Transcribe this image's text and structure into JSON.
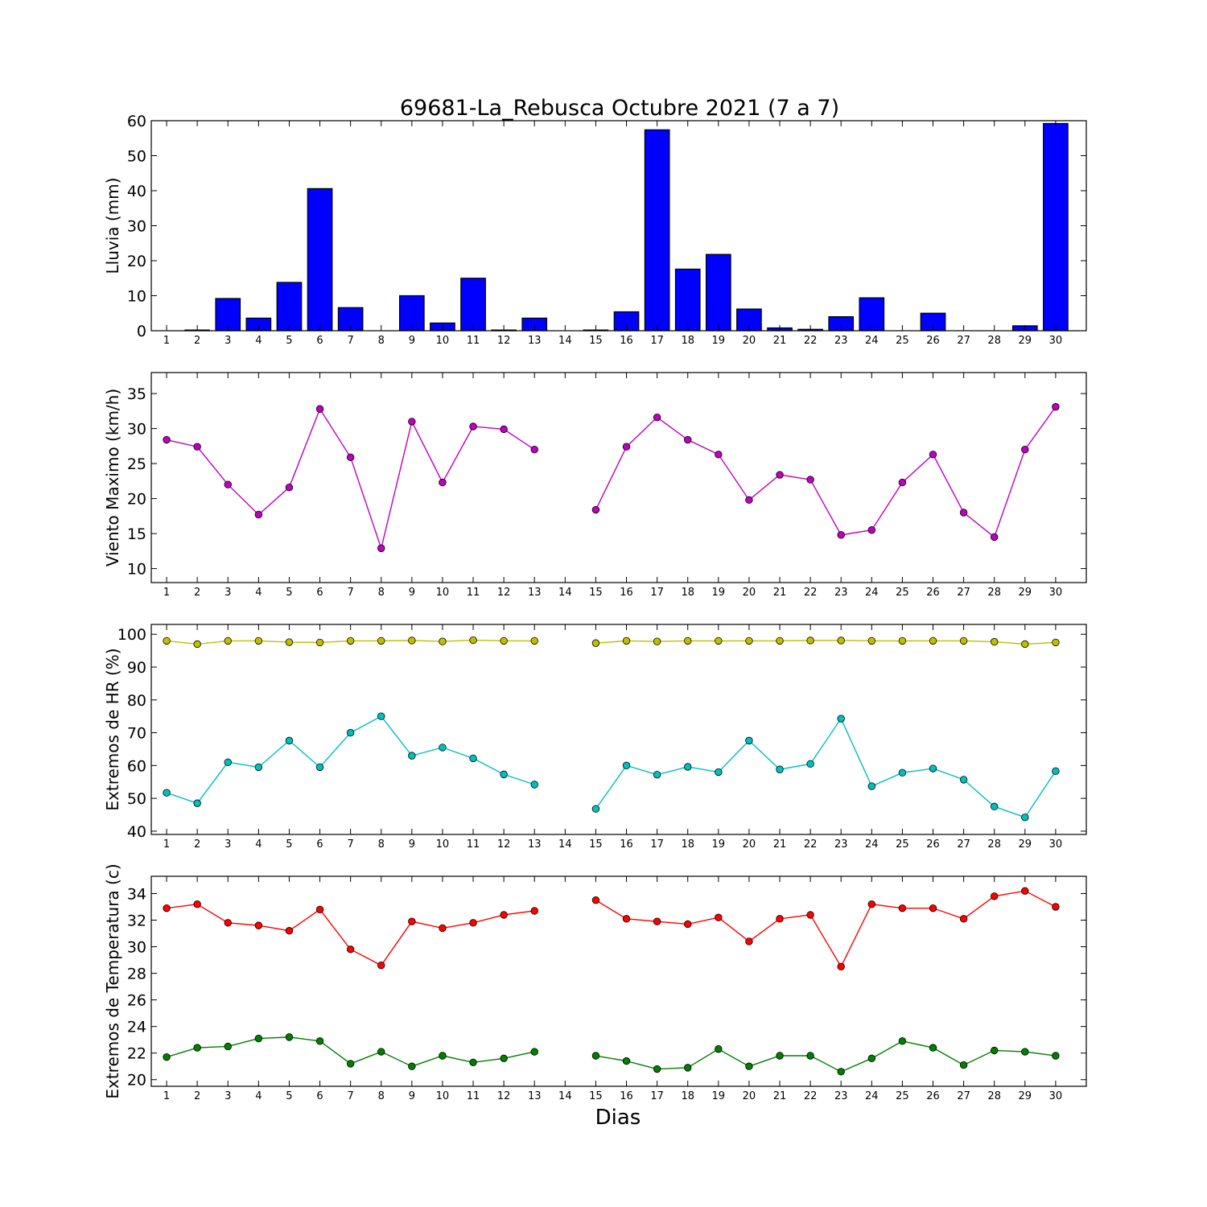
{
  "figure": {
    "title": "69681-La_Rebusca Octubre 2021  (7 a 7)",
    "xlabel": "Dias"
  },
  "chart_data": [
    {
      "type": "bar",
      "ylabel": "Lluvia (mm)",
      "ylim": [
        0,
        60
      ],
      "yticks": [
        0,
        10,
        20,
        30,
        40,
        50,
        60
      ],
      "categories": [
        "1",
        "2",
        "3",
        "4",
        "5",
        "6",
        "7",
        "8",
        "9",
        "10",
        "11",
        "12",
        "13",
        "14",
        "15",
        "16",
        "17",
        "18",
        "19",
        "20",
        "21",
        "22",
        "23",
        "24",
        "25",
        "26",
        "27",
        "28",
        "29",
        "30"
      ],
      "values": [
        0,
        0.2,
        9.2,
        3.6,
        13.8,
        40.6,
        6.6,
        0,
        10.0,
        2.2,
        15.0,
        0.2,
        3.6,
        0,
        0.2,
        5.4,
        57.4,
        17.6,
        21.8,
        6.2,
        0.8,
        0.4,
        4.0,
        9.4,
        0,
        5.0,
        0,
        0,
        1.4,
        59.2
      ],
      "color": "#0000ff",
      "grid": false
    },
    {
      "type": "line",
      "ylabel": "Viento Maximo (km/h)",
      "ylim": [
        8,
        38
      ],
      "yticks": [
        10,
        15,
        20,
        25,
        30,
        35
      ],
      "categories": [
        "1",
        "2",
        "3",
        "4",
        "5",
        "6",
        "7",
        "8",
        "9",
        "10",
        "11",
        "12",
        "13",
        "14",
        "15",
        "16",
        "17",
        "18",
        "19",
        "20",
        "21",
        "22",
        "23",
        "24",
        "25",
        "26",
        "27",
        "28",
        "29",
        "30"
      ],
      "series": [
        {
          "color": "#bf00bf",
          "values": [
            28.4,
            27.4,
            22.0,
            17.7,
            21.6,
            32.8,
            25.9,
            12.9,
            31.0,
            22.3,
            30.3,
            29.9,
            27.0,
            null,
            18.4,
            27.4,
            31.6,
            28.4,
            26.3,
            19.8,
            23.4,
            22.7,
            14.8,
            15.5,
            22.3,
            26.3,
            18.0,
            14.5,
            27.0,
            33.1
          ]
        }
      ],
      "grid": false
    },
    {
      "type": "line",
      "ylabel": "Extremos de HR (%)",
      "ylim": [
        39,
        103
      ],
      "yticks": [
        40,
        50,
        60,
        70,
        80,
        90,
        100
      ],
      "categories": [
        "1",
        "2",
        "3",
        "4",
        "5",
        "6",
        "7",
        "8",
        "9",
        "10",
        "11",
        "12",
        "13",
        "14",
        "15",
        "16",
        "17",
        "18",
        "19",
        "20",
        "21",
        "22",
        "23",
        "24",
        "25",
        "26",
        "27",
        "28",
        "29",
        "30"
      ],
      "series": [
        {
          "color": "#bfbf00",
          "values": [
            98,
            97,
            98,
            98,
            97.6,
            97.5,
            98,
            98,
            98.1,
            97.8,
            98.2,
            98,
            98,
            null,
            97.3,
            98,
            97.8,
            98,
            98,
            98,
            98,
            98.1,
            98.1,
            98,
            98,
            98,
            98,
            97.7,
            97,
            97.5
          ]
        },
        {
          "color": "#00bfbf",
          "values": [
            51.7,
            48.5,
            61,
            59.5,
            67.6,
            59.5,
            70,
            75,
            63,
            65.5,
            62.2,
            57.3,
            54.2,
            null,
            46.8,
            60,
            57.2,
            59.6,
            58,
            67.6,
            58.8,
            60.5,
            74.3,
            53.7,
            57.8,
            59.1,
            55.7,
            47.5,
            44.2,
            58.3
          ]
        }
      ],
      "grid": false
    },
    {
      "type": "line",
      "ylabel": "Extremos de Temperatura (c)",
      "ylim": [
        19.5,
        35.3
      ],
      "yticks": [
        20,
        22,
        24,
        26,
        28,
        30,
        32,
        34
      ],
      "categories": [
        "1",
        "2",
        "3",
        "4",
        "5",
        "6",
        "7",
        "8",
        "9",
        "10",
        "11",
        "12",
        "13",
        "14",
        "15",
        "16",
        "17",
        "18",
        "19",
        "20",
        "21",
        "22",
        "23",
        "24",
        "25",
        "26",
        "27",
        "28",
        "29",
        "30"
      ],
      "series": [
        {
          "color": "#ff0000",
          "values": [
            32.9,
            33.2,
            31.8,
            31.6,
            31.2,
            32.8,
            29.8,
            28.6,
            31.9,
            31.4,
            31.8,
            32.4,
            32.7,
            null,
            33.5,
            32.1,
            31.9,
            31.7,
            32.2,
            30.4,
            32.1,
            32.4,
            28.5,
            33.2,
            32.9,
            32.9,
            32.1,
            33.8,
            34.2,
            33.0
          ]
        },
        {
          "color": "#007f00",
          "values": [
            21.7,
            22.4,
            22.5,
            23.1,
            23.2,
            22.9,
            21.2,
            22.1,
            21.0,
            21.8,
            21.3,
            21.6,
            22.1,
            null,
            21.8,
            21.4,
            20.8,
            20.9,
            22.3,
            21.0,
            21.8,
            21.8,
            20.6,
            21.6,
            22.9,
            22.4,
            21.1,
            22.2,
            22.1,
            21.8
          ]
        }
      ],
      "grid": false
    }
  ]
}
